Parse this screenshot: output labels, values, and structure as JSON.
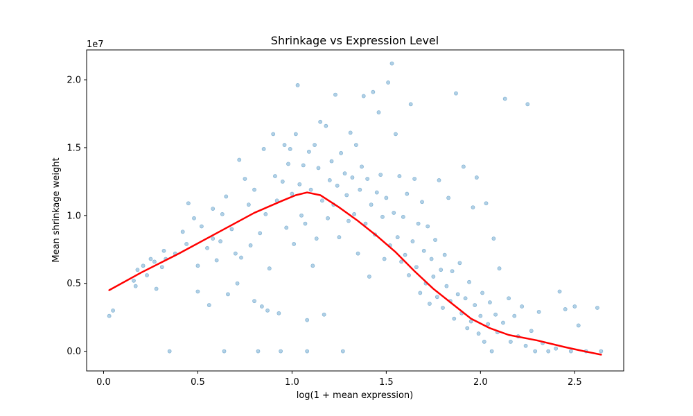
{
  "chart_data": {
    "type": "scatter",
    "title": "Shrinkage vs Expression Level",
    "xlabel": "log(1 + mean expression)",
    "ylabel": "Mean shrinkage weight",
    "y_offset_label": "1e7",
    "xlim": [
      -0.09,
      2.76
    ],
    "ylim": [
      -1450000,
      22200000
    ],
    "x_ticks": [
      0.0,
      0.5,
      1.0,
      1.5,
      2.0,
      2.5
    ],
    "x_tick_labels": [
      "0.0",
      "0.5",
      "1.0",
      "1.5",
      "2.0",
      "2.5"
    ],
    "y_ticks": [
      0,
      5000000,
      10000000,
      15000000,
      20000000
    ],
    "y_tick_labels": [
      "0.0",
      "0.5",
      "1.0",
      "1.5",
      "2.0"
    ],
    "grid": false,
    "colors": {
      "points": "#1f77b4",
      "trend": "#ff0000"
    },
    "series": [
      {
        "kind": "scatter",
        "values": [
          [
            0.03,
            2600000
          ],
          [
            0.05,
            3000000
          ],
          [
            0.16,
            5200000
          ],
          [
            0.17,
            4800000
          ],
          [
            0.18,
            6000000
          ],
          [
            0.21,
            6300000
          ],
          [
            0.23,
            5600000
          ],
          [
            0.25,
            6800000
          ],
          [
            0.27,
            6600000
          ],
          [
            0.28,
            4600000
          ],
          [
            0.31,
            6200000
          ],
          [
            0.32,
            7400000
          ],
          [
            0.33,
            6800000
          ],
          [
            0.35,
            0
          ],
          [
            0.38,
            7200000
          ],
          [
            0.42,
            8800000
          ],
          [
            0.44,
            7900000
          ],
          [
            0.45,
            10900000
          ],
          [
            0.48,
            9800000
          ],
          [
            0.5,
            4400000
          ],
          [
            0.5,
            6300000
          ],
          [
            0.52,
            9200000
          ],
          [
            0.55,
            7600000
          ],
          [
            0.56,
            3400000
          ],
          [
            0.58,
            10500000
          ],
          [
            0.58,
            8300000
          ],
          [
            0.6,
            6700000
          ],
          [
            0.62,
            8100000
          ],
          [
            0.63,
            10100000
          ],
          [
            0.64,
            0
          ],
          [
            0.65,
            11400000
          ],
          [
            0.66,
            4200000
          ],
          [
            0.68,
            9000000
          ],
          [
            0.7,
            7200000
          ],
          [
            0.71,
            5000000
          ],
          [
            0.72,
            14100000
          ],
          [
            0.73,
            6900000
          ],
          [
            0.75,
            12700000
          ],
          [
            0.77,
            10800000
          ],
          [
            0.78,
            7800000
          ],
          [
            0.8,
            3700000
          ],
          [
            0.8,
            11900000
          ],
          [
            0.82,
            0
          ],
          [
            0.83,
            8700000
          ],
          [
            0.84,
            3300000
          ],
          [
            0.85,
            14900000
          ],
          [
            0.86,
            10100000
          ],
          [
            0.87,
            3000000
          ],
          [
            0.88,
            6100000
          ],
          [
            0.9,
            16000000
          ],
          [
            0.91,
            12900000
          ],
          [
            0.92,
            11100000
          ],
          [
            0.93,
            2800000
          ],
          [
            0.94,
            0
          ],
          [
            0.95,
            12500000
          ],
          [
            0.96,
            15200000
          ],
          [
            0.97,
            9100000
          ],
          [
            0.98,
            13800000
          ],
          [
            0.99,
            14900000
          ],
          [
            1.0,
            11600000
          ],
          [
            1.01,
            7900000
          ],
          [
            1.02,
            16000000
          ],
          [
            1.03,
            19600000
          ],
          [
            1.04,
            12300000
          ],
          [
            1.05,
            10000000
          ],
          [
            1.06,
            13700000
          ],
          [
            1.07,
            9400000
          ],
          [
            1.08,
            0
          ],
          [
            1.08,
            2300000
          ],
          [
            1.09,
            14700000
          ],
          [
            1.1,
            11900000
          ],
          [
            1.11,
            6300000
          ],
          [
            1.12,
            15200000
          ],
          [
            1.13,
            8300000
          ],
          [
            1.14,
            13500000
          ],
          [
            1.15,
            16900000
          ],
          [
            1.16,
            11100000
          ],
          [
            1.17,
            2700000
          ],
          [
            1.18,
            16600000
          ],
          [
            1.19,
            9800000
          ],
          [
            1.2,
            12600000
          ],
          [
            1.21,
            14000000
          ],
          [
            1.22,
            10800000
          ],
          [
            1.23,
            18900000
          ],
          [
            1.24,
            12200000
          ],
          [
            1.25,
            8400000
          ],
          [
            1.26,
            14600000
          ],
          [
            1.27,
            0
          ],
          [
            1.28,
            13100000
          ],
          [
            1.29,
            11500000
          ],
          [
            1.3,
            9600000
          ],
          [
            1.31,
            16100000
          ],
          [
            1.32,
            12800000
          ],
          [
            1.33,
            10100000
          ],
          [
            1.34,
            15200000
          ],
          [
            1.35,
            7200000
          ],
          [
            1.36,
            11900000
          ],
          [
            1.37,
            13600000
          ],
          [
            1.38,
            18800000
          ],
          [
            1.39,
            9400000
          ],
          [
            1.4,
            12700000
          ],
          [
            1.41,
            5500000
          ],
          [
            1.42,
            10800000
          ],
          [
            1.43,
            19100000
          ],
          [
            1.44,
            8600000
          ],
          [
            1.45,
            11700000
          ],
          [
            1.46,
            17600000
          ],
          [
            1.47,
            13000000
          ],
          [
            1.48,
            9900000
          ],
          [
            1.49,
            6800000
          ],
          [
            1.5,
            11300000
          ],
          [
            1.51,
            19800000
          ],
          [
            1.52,
            7800000
          ],
          [
            1.53,
            21200000
          ],
          [
            1.54,
            10200000
          ],
          [
            1.55,
            16000000
          ],
          [
            1.56,
            8400000
          ],
          [
            1.57,
            12900000
          ],
          [
            1.58,
            6600000
          ],
          [
            1.59,
            9900000
          ],
          [
            1.6,
            7100000
          ],
          [
            1.61,
            11600000
          ],
          [
            1.62,
            5600000
          ],
          [
            1.63,
            18200000
          ],
          [
            1.64,
            8100000
          ],
          [
            1.65,
            12700000
          ],
          [
            1.66,
            6200000
          ],
          [
            1.67,
            9400000
          ],
          [
            1.68,
            4300000
          ],
          [
            1.69,
            11000000
          ],
          [
            1.7,
            7400000
          ],
          [
            1.71,
            5000000
          ],
          [
            1.72,
            9200000
          ],
          [
            1.73,
            3500000
          ],
          [
            1.74,
            6800000
          ],
          [
            1.75,
            5500000
          ],
          [
            1.76,
            8200000
          ],
          [
            1.77,
            4000000
          ],
          [
            1.78,
            12600000
          ],
          [
            1.79,
            6000000
          ],
          [
            1.8,
            3200000
          ],
          [
            1.81,
            7100000
          ],
          [
            1.82,
            4800000
          ],
          [
            1.83,
            11300000
          ],
          [
            1.84,
            3700000
          ],
          [
            1.85,
            5900000
          ],
          [
            1.86,
            2400000
          ],
          [
            1.87,
            19000000
          ],
          [
            1.88,
            4200000
          ],
          [
            1.89,
            6500000
          ],
          [
            1.9,
            2800000
          ],
          [
            1.91,
            13600000
          ],
          [
            1.92,
            3900000
          ],
          [
            1.93,
            1700000
          ],
          [
            1.94,
            5100000
          ],
          [
            1.95,
            2200000
          ],
          [
            1.96,
            10600000
          ],
          [
            1.97,
            3400000
          ],
          [
            1.98,
            12800000
          ],
          [
            1.99,
            1300000
          ],
          [
            2.0,
            2600000
          ],
          [
            2.01,
            4300000
          ],
          [
            2.02,
            700000
          ],
          [
            2.03,
            10900000
          ],
          [
            2.04,
            2000000
          ],
          [
            2.05,
            3600000
          ],
          [
            2.06,
            0
          ],
          [
            2.07,
            8300000
          ],
          [
            2.08,
            2700000
          ],
          [
            2.09,
            1400000
          ],
          [
            2.1,
            6100000
          ],
          [
            2.12,
            2100000
          ],
          [
            2.13,
            18600000
          ],
          [
            2.15,
            3900000
          ],
          [
            2.16,
            700000
          ],
          [
            2.18,
            2600000
          ],
          [
            2.2,
            1100000
          ],
          [
            2.22,
            3300000
          ],
          [
            2.24,
            400000
          ],
          [
            2.25,
            18200000
          ],
          [
            2.27,
            1500000
          ],
          [
            2.29,
            0
          ],
          [
            2.31,
            2900000
          ],
          [
            2.33,
            600000
          ],
          [
            2.36,
            0
          ],
          [
            2.4,
            200000
          ],
          [
            2.42,
            4400000
          ],
          [
            2.45,
            3100000
          ],
          [
            2.48,
            0
          ],
          [
            2.5,
            3300000
          ],
          [
            2.52,
            1900000
          ],
          [
            2.56,
            0
          ],
          [
            2.62,
            3200000
          ],
          [
            2.64,
            0
          ]
        ]
      },
      {
        "kind": "line",
        "values": [
          [
            0.03,
            4500000
          ],
          [
            0.2,
            5800000
          ],
          [
            0.4,
            7200000
          ],
          [
            0.6,
            8700000
          ],
          [
            0.8,
            10200000
          ],
          [
            0.95,
            11100000
          ],
          [
            1.02,
            11500000
          ],
          [
            1.08,
            11700000
          ],
          [
            1.15,
            11500000
          ],
          [
            1.25,
            10600000
          ],
          [
            1.35,
            9600000
          ],
          [
            1.45,
            8500000
          ],
          [
            1.55,
            7300000
          ],
          [
            1.65,
            5900000
          ],
          [
            1.75,
            4600000
          ],
          [
            1.85,
            3500000
          ],
          [
            1.95,
            2400000
          ],
          [
            2.05,
            1700000
          ],
          [
            2.15,
            1200000
          ],
          [
            2.3,
            800000
          ],
          [
            2.45,
            300000
          ],
          [
            2.55,
            0
          ],
          [
            2.64,
            -250000
          ]
        ]
      }
    ]
  }
}
